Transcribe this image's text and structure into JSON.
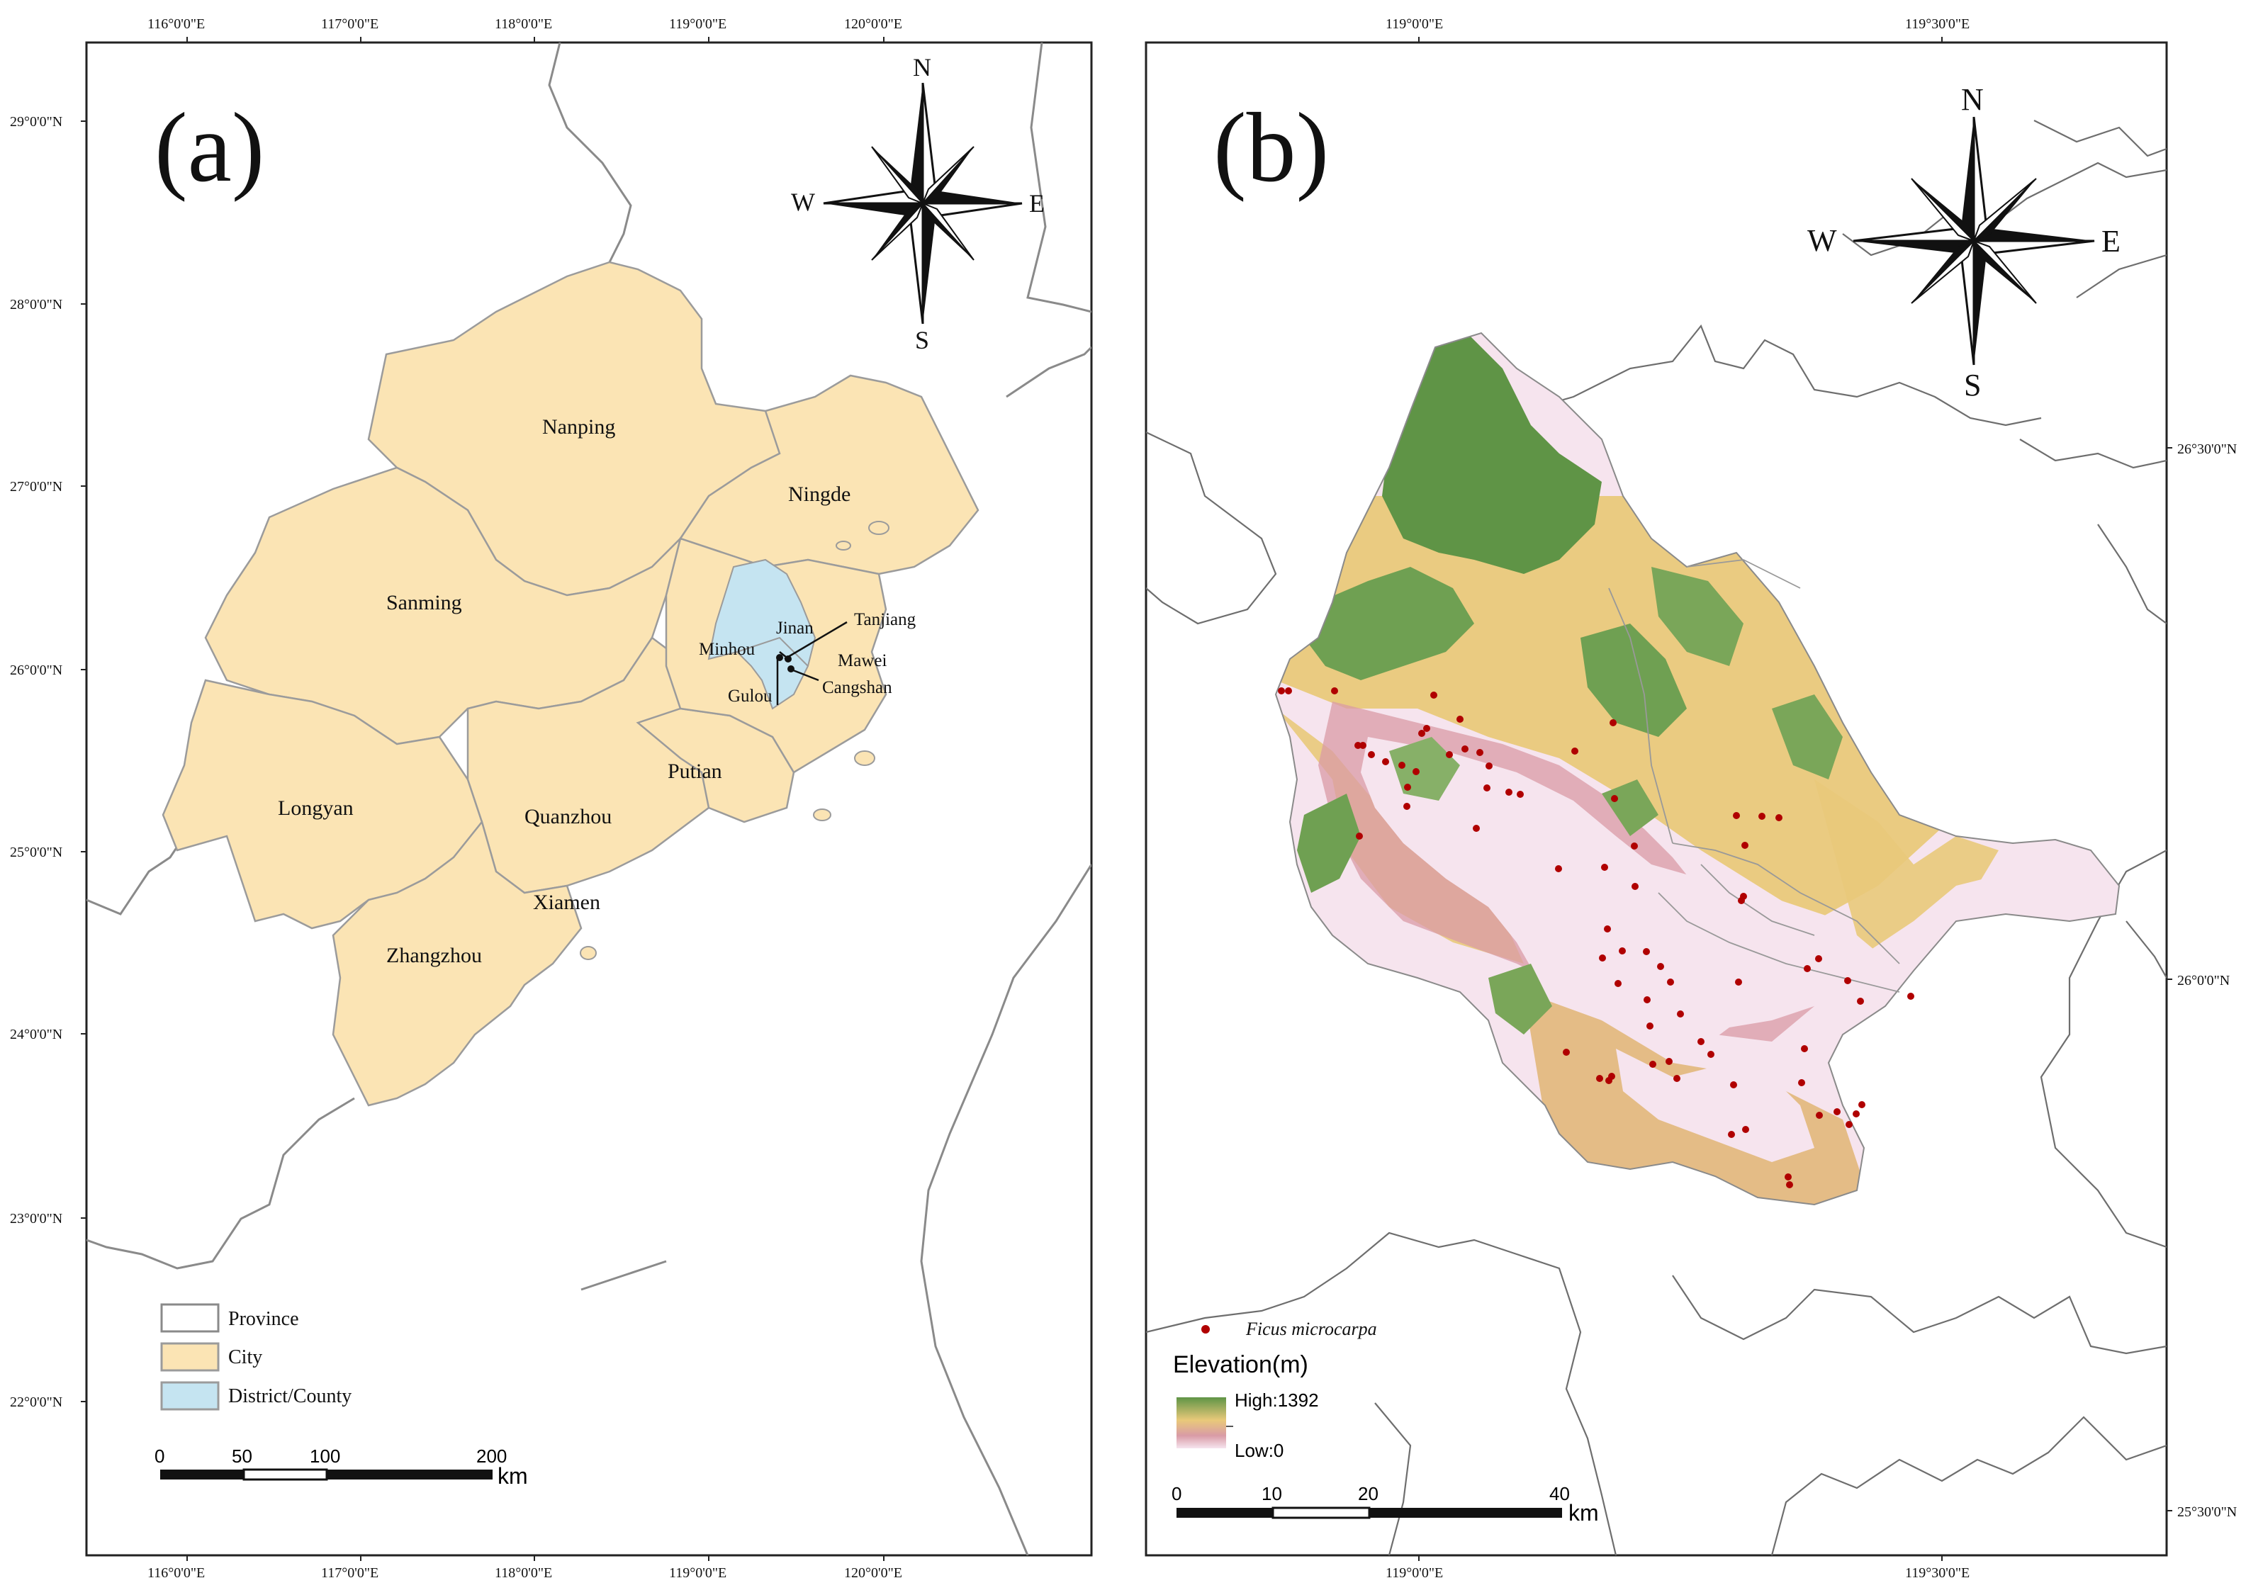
{
  "colors": {
    "city_fill": "#fbe4b4",
    "district_fill": "#c5e4f1",
    "province_stroke": "#8a8a8a",
    "boundary_stroke": "#9b9b9b",
    "occurrence": "#b00000",
    "elev_high": "#5f9446",
    "elev_mid": "#e9c97a",
    "elev_low": "#f7e6ef"
  },
  "panel_a": {
    "label": "(a)",
    "top_ticks": [
      "116°0'0\"E",
      "117°0'0\"E",
      "118°0'0\"E",
      "119°0'0\"E",
      "120°0'0\"E"
    ],
    "bottom_ticks": [
      "116°0'0\"E",
      "117°0'0\"E",
      "118°0'0\"E",
      "119°0'0\"E",
      "120°0'0\"E"
    ],
    "left_ticks": [
      "29°0'0\"N",
      "28°0'0\"N",
      "27°0'0\"N",
      "26°0'0\"N",
      "25°0'0\"N",
      "24°0'0\"N",
      "23°0'0\"N",
      "22°0'0\"N"
    ],
    "cities": [
      "Nanping",
      "Ningde",
      "Sanming",
      "Longyan",
      "Quanzhou",
      "Putian",
      "Xiamen",
      "Zhangzhou"
    ],
    "districts": [
      "Minhou",
      "Jinan",
      "Tanjiang",
      "Mawei",
      "Gulou",
      "Cangshan"
    ],
    "compass": {
      "n": "N",
      "s": "S",
      "e": "E",
      "w": "W",
      "icon": "compass-rose-icon"
    },
    "legend": [
      {
        "label": "Province",
        "swatch": "province"
      },
      {
        "label": "City",
        "swatch": "city"
      },
      {
        "label": "District/County",
        "swatch": "district"
      }
    ],
    "scale": {
      "ticks": [
        "0",
        "50",
        "100",
        "200"
      ],
      "unit": "km"
    }
  },
  "panel_b": {
    "label": "(b)",
    "top_ticks": [
      "119°0'0\"E",
      "119°30'0\"E"
    ],
    "bottom_ticks": [
      "119°0'0\"E",
      "119°30'0\"E"
    ],
    "right_ticks": [
      "26°30'0\"N",
      "26°0'0\"N",
      "25°30'0\"N"
    ],
    "compass": {
      "n": "N",
      "s": "S",
      "e": "E",
      "w": "W",
      "icon": "compass-rose-icon"
    },
    "occurrence_label": "Ficus microcarpa",
    "elevation": {
      "title": "Elevation(m)",
      "high": "High:1392",
      "low": "Low:0"
    },
    "scale": {
      "ticks": [
        "0",
        "10",
        "20",
        "40"
      ],
      "unit": "km"
    }
  }
}
